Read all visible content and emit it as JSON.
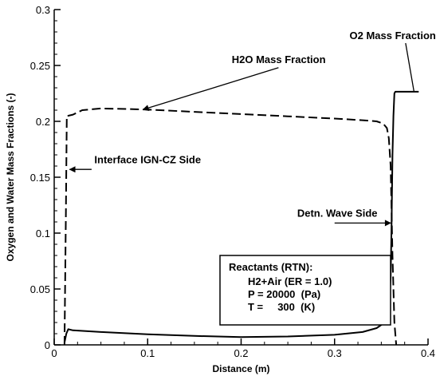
{
  "chart_data": {
    "type": "line",
    "xlabel": "Distance (m)",
    "ylabel": "Oxygen and Water Mass Fractions (-)",
    "xlim": [
      0,
      0.4
    ],
    "ylim": [
      0,
      0.3
    ],
    "x_ticks": [
      "0",
      "0.1",
      "0.2",
      "0.3",
      "0.4"
    ],
    "y_ticks": [
      "0",
      "0.05",
      "0.1",
      "0.15",
      "0.2",
      "0.25",
      "0.3"
    ],
    "grid": false,
    "series": [
      {
        "name": "H2O Mass Fraction",
        "style": "dashed",
        "x": [
          0.011,
          0.0125,
          0.0135,
          0.015,
          0.02,
          0.03,
          0.05,
          0.08,
          0.1,
          0.15,
          0.2,
          0.25,
          0.3,
          0.33,
          0.345,
          0.352,
          0.356,
          0.358,
          0.36,
          0.362,
          0.364,
          0.366
        ],
        "y": [
          0.0,
          0.12,
          0.205,
          0.205,
          0.206,
          0.21,
          0.2115,
          0.211,
          0.2105,
          0.2085,
          0.2065,
          0.2045,
          0.2025,
          0.201,
          0.2,
          0.198,
          0.194,
          0.185,
          0.16,
          0.08,
          0.02,
          0.0
        ]
      },
      {
        "name": "O2 Mass Fraction",
        "style": "solid",
        "x": [
          0.011,
          0.013,
          0.015,
          0.02,
          0.05,
          0.1,
          0.15,
          0.2,
          0.25,
          0.3,
          0.33,
          0.345,
          0.352,
          0.356,
          0.358,
          0.359,
          0.36,
          0.361,
          0.362,
          0.363,
          0.364,
          0.365,
          0.38,
          0.39
        ],
        "y": [
          0.002,
          0.01,
          0.014,
          0.013,
          0.0115,
          0.0095,
          0.008,
          0.007,
          0.0075,
          0.009,
          0.0115,
          0.015,
          0.019,
          0.025,
          0.032,
          0.042,
          0.06,
          0.11,
          0.17,
          0.205,
          0.225,
          0.2265,
          0.2265,
          0.2265
        ]
      }
    ],
    "annotations": [
      {
        "id": "h2o",
        "text": "H2O Mass Fraction",
        "tx": 0.19,
        "ty": 0.252,
        "ax": 0.24,
        "ay": 0.248,
        "px": 0.095,
        "py": 0.2105,
        "arrow": true
      },
      {
        "id": "o2",
        "text": "O2 Mass Fraction",
        "tx": 0.316,
        "ty": 0.2735,
        "ax": 0.376,
        "ay": 0.27,
        "px": 0.385,
        "py": 0.2265,
        "arrow": false
      },
      {
        "id": "ign",
        "text": "Interface IGN-CZ Side",
        "tx": 0.043,
        "ty": 0.1625,
        "ax": 0.04,
        "ay": 0.157,
        "px": 0.0165,
        "py": 0.157,
        "arrow": true
      },
      {
        "id": "detn",
        "text": "Detn. Wave Side",
        "tx": 0.26,
        "ty": 0.1145,
        "ax": 0.3,
        "ay": 0.109,
        "px": 0.36,
        "py": 0.109,
        "arrow": true
      }
    ],
    "info_box": {
      "lines": [
        "Reactants (RTN):",
        "H2+Air (ER = 1.0)",
        "P = 20000  (Pa)",
        "T =     300  (K)"
      ]
    }
  }
}
